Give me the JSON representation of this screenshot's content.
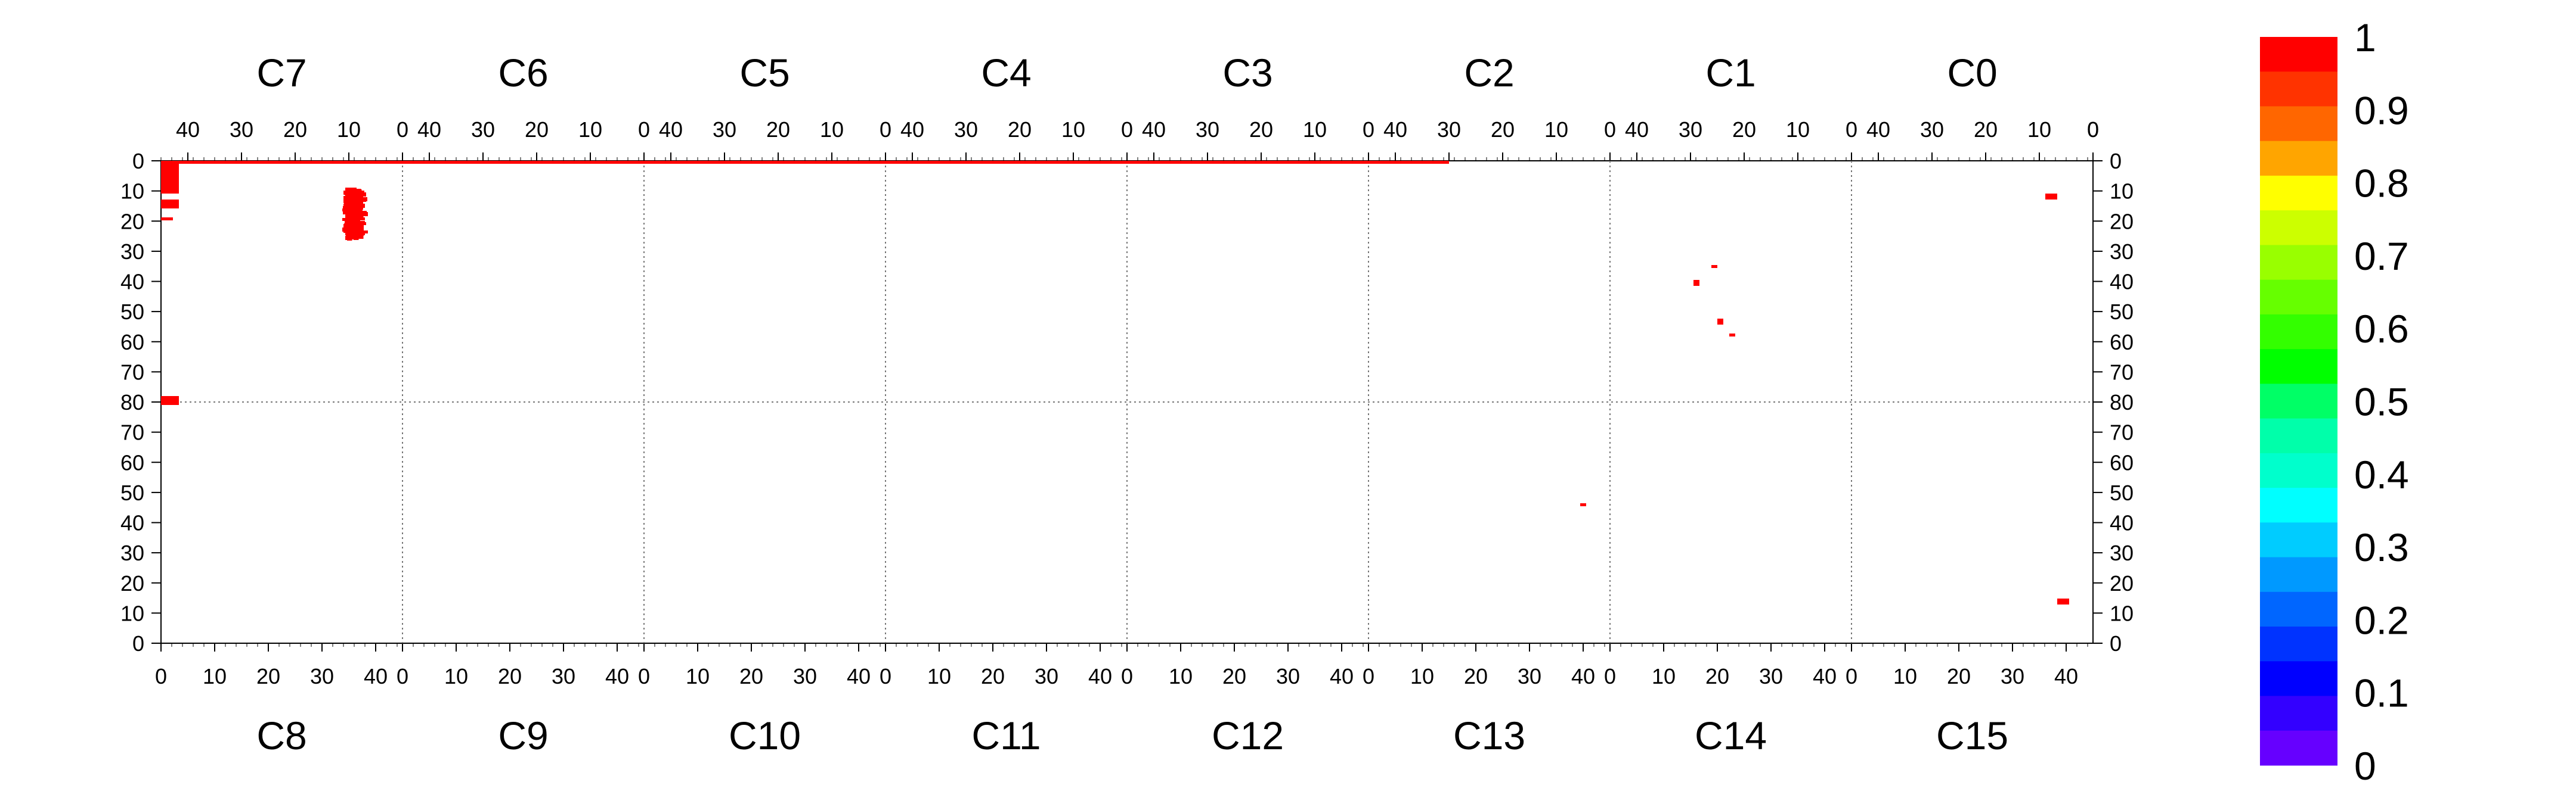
{
  "chart_data": {
    "type": "heatmap",
    "panels_top": [
      "C7",
      "C6",
      "C5",
      "C4",
      "C3",
      "C2",
      "C1",
      "C0"
    ],
    "panels_bottom": [
      "C8",
      "C9",
      "C10",
      "C11",
      "C12",
      "C13",
      "C14",
      "C15"
    ],
    "top_x_ticks": [
      "40",
      "30",
      "20",
      "10",
      "0"
    ],
    "bottom_x_ticks": [
      "0",
      "10",
      "20",
      "30",
      "40"
    ],
    "y_ticks": [
      "0",
      "10",
      "20",
      "30",
      "40",
      "50",
      "60",
      "70",
      "80",
      "70",
      "60",
      "50",
      "40",
      "30",
      "20",
      "10",
      "0"
    ],
    "colorbar": {
      "ticks": [
        "1",
        "0.9",
        "0.8",
        "0.7",
        "0.6",
        "0.5",
        "0.4",
        "0.3",
        "0.2",
        "0.1",
        "0"
      ],
      "colors": [
        "#ff0000",
        "#ff3300",
        "#ff6600",
        "#ffa500",
        "#ffff00",
        "#ccff00",
        "#99ff00",
        "#66ff00",
        "#33ff00",
        "#00ff00",
        "#00ff66",
        "#00ffaa",
        "#00ffcc",
        "#00ffff",
        "#00ccff",
        "#0099ff",
        "#0066ff",
        "#0033ff",
        "#0000ff",
        "#3300ff",
        "#6600ff"
      ],
      "range": [
        0,
        1
      ]
    },
    "marker_color": "#ff0000",
    "grid": "dotted",
    "xlim": [
      0,
      43
    ],
    "ylim": [
      0,
      80
    ],
    "blocks": [
      [
        0,
        0,
        168,
        1
      ],
      [
        168,
        0,
        200,
        1
      ],
      [
        200,
        0,
        216,
        1
      ],
      [
        0,
        1,
        3,
        11
      ],
      [
        0,
        13,
        3,
        16
      ],
      [
        0,
        19,
        2,
        20
      ],
      [
        0,
        79,
        3,
        82
      ],
      [
        316,
        11,
        318,
        13
      ],
      [
        257,
        40,
        258,
        42
      ],
      [
        260,
        35,
        261,
        36
      ],
      [
        261,
        53,
        262,
        55
      ],
      [
        263,
        58,
        264,
        59
      ],
      [
        238,
        115,
        239,
        116
      ],
      [
        318,
        147,
        320,
        149
      ]
    ],
    "scatter_region": {
      "x_range": [
        302,
        332
      ],
      "y_range": [
        44,
        127
      ]
    },
    "scatter_seed": 13
  }
}
